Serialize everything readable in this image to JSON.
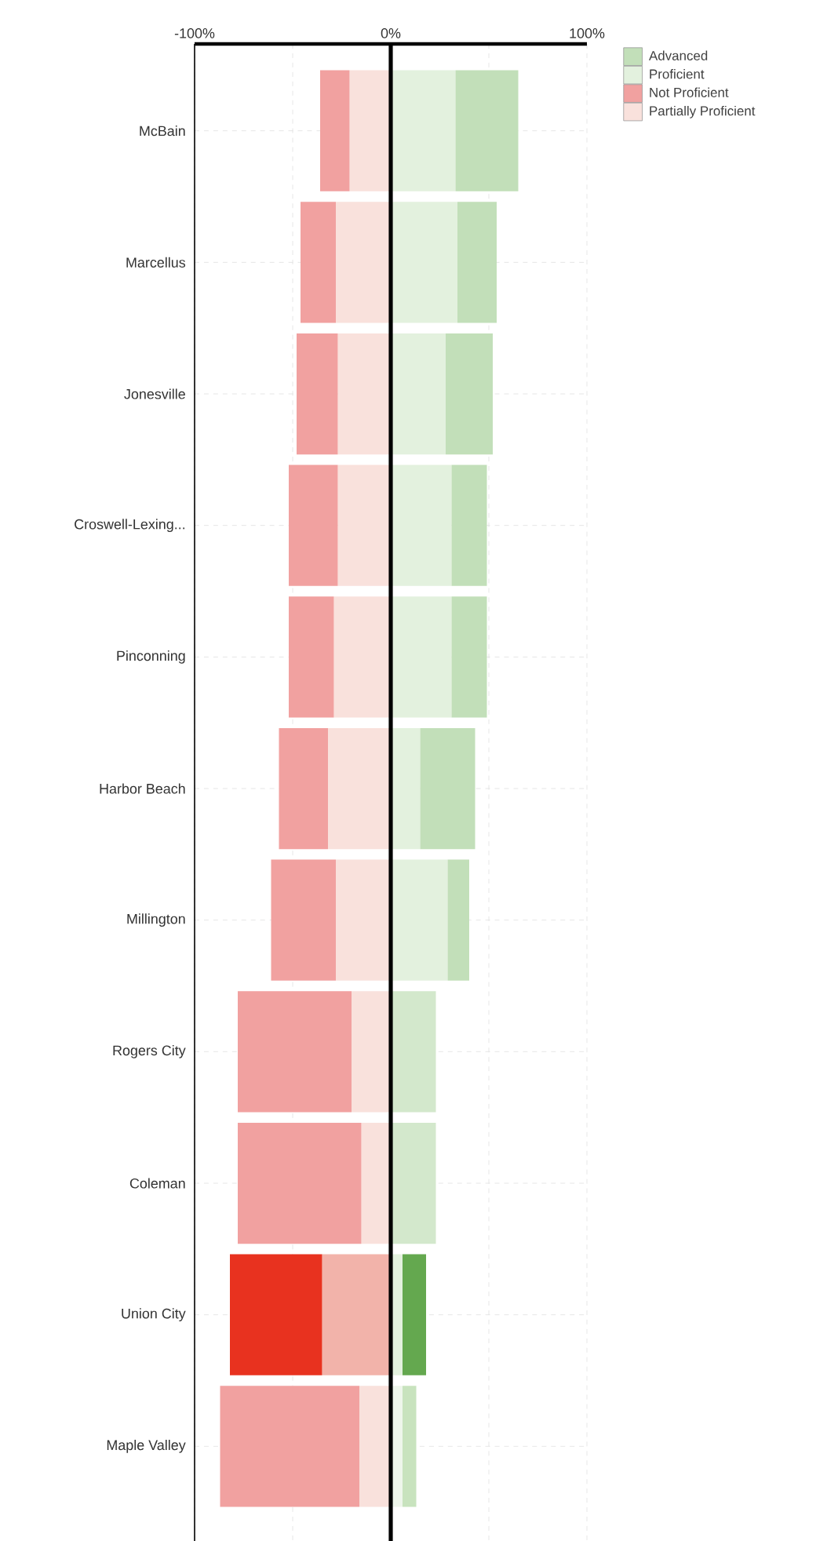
{
  "chart_data": {
    "type": "bar",
    "orientation": "horizontal",
    "stacked": true,
    "categories": [
      "McBain",
      "Marcellus",
      "Jonesville",
      "Croswell-Lexing...",
      "Pinconning",
      "Harbor Beach",
      "Millington",
      "Rogers City",
      "Coleman",
      "Union City",
      "Maple Valley"
    ],
    "series": [
      {
        "name": "Partially Proficient",
        "color": "#f9e1dc",
        "colors": [
          "#f9e1dc",
          "#f9e1dc",
          "#f9e1dc",
          "#f9e1dc",
          "#f9e1dc",
          "#f9e1dc",
          "#f9e1dc",
          "#f9e1dc",
          "#f9e1dc",
          "#f2b3aa",
          "#f9e1dc"
        ],
        "values": [
          -21,
          -28,
          -27,
          -27,
          -29,
          -32,
          -28,
          -20,
          -15,
          -35,
          -16
        ]
      },
      {
        "name": "Not Proficient",
        "color": "#f1a1a0",
        "colors": [
          "#f1a1a0",
          "#f1a1a0",
          "#f1a1a0",
          "#f1a1a0",
          "#f1a1a0",
          "#f1a1a0",
          "#f1a1a0",
          "#f1a1a0",
          "#f1a1a0",
          "#e8321f",
          "#f1a1a0"
        ],
        "values": [
          -15,
          -18,
          -21,
          -25,
          -23,
          -25,
          -33,
          -58,
          -63,
          -47,
          -71
        ]
      },
      {
        "name": "Proficient",
        "color": "#e3f1de",
        "colors": [
          "#e3f1de",
          "#e3f1de",
          "#e3f1de",
          "#e3f1de",
          "#e3f1de",
          "#e3f1de",
          "#e3f1de",
          "#d3e8cc",
          "#d3e8cc",
          "#e3f1de",
          "#eef6eb"
        ],
        "values": [
          33,
          34,
          28,
          31,
          31,
          15,
          29,
          23,
          23,
          6,
          6
        ]
      },
      {
        "name": "Advanced",
        "color": "#c2dfb9",
        "colors": [
          "#c2dfb9",
          "#c2dfb9",
          "#c2dfb9",
          "#c2dfb9",
          "#c2dfb9",
          "#c2dfb9",
          "#c2dfb9",
          "#c2dfb9",
          "#c2dfb9",
          "#64a84f",
          "#c8e3be"
        ],
        "values": [
          32,
          20,
          24,
          18,
          18,
          28,
          11,
          0,
          0,
          12,
          7
        ]
      }
    ],
    "xlim": [
      -100,
      100
    ],
    "xticks": [
      {
        "value": -100,
        "label": "-100%"
      },
      {
        "value": -50,
        "label": null
      },
      {
        "value": 0,
        "label": "0%"
      },
      {
        "value": 50,
        "label": null
      },
      {
        "value": 100,
        "label": "100%"
      }
    ],
    "ref_lines": [
      {
        "axis": "x",
        "value": 0,
        "label": null,
        "color": "#000000"
      }
    ],
    "grid": true,
    "legend": "top right"
  }
}
